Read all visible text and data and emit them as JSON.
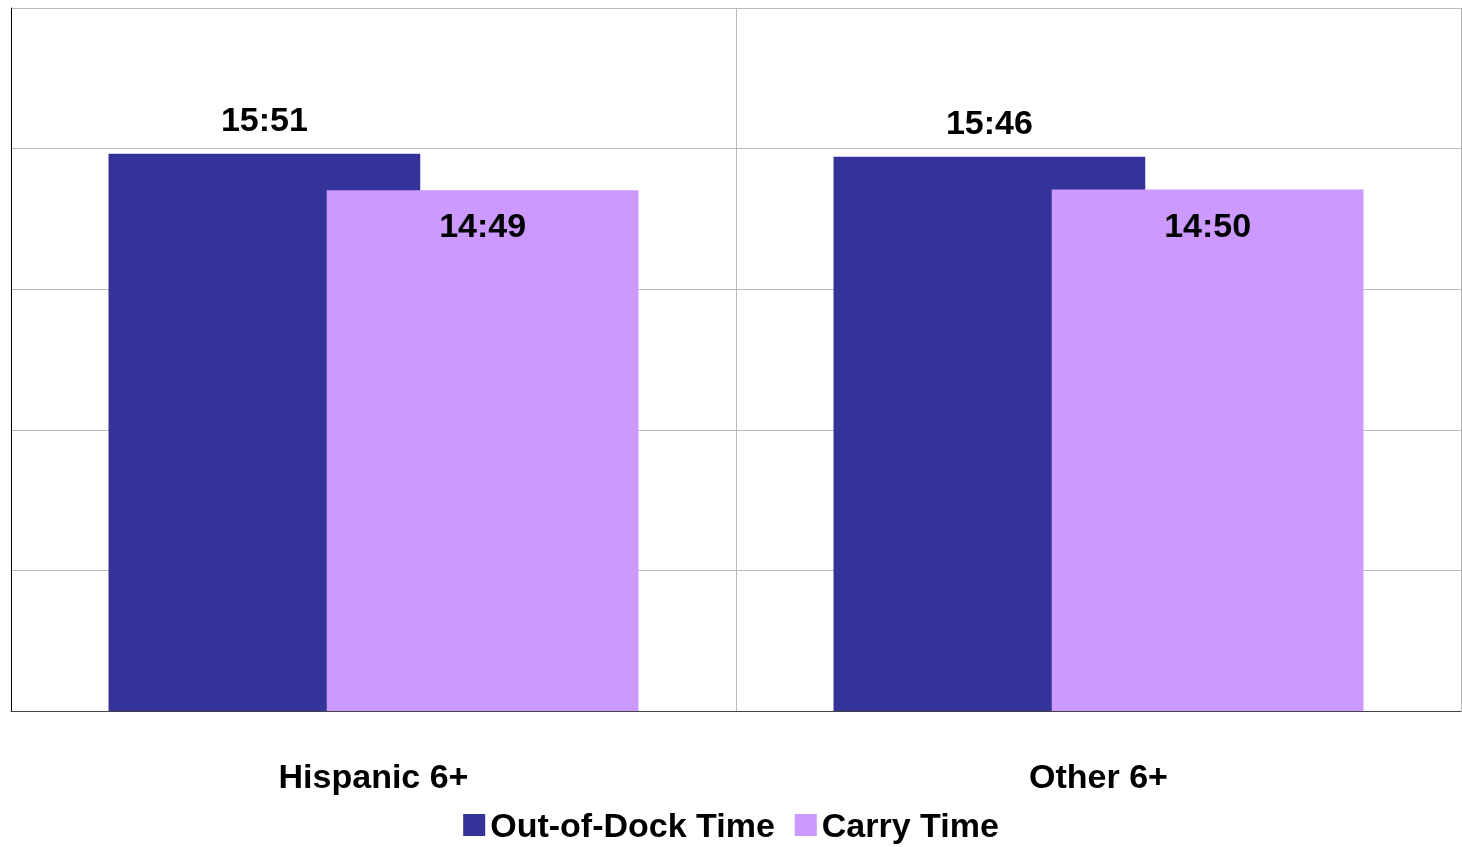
{
  "chart_data": {
    "type": "bar",
    "categories": [
      "Hispanic 6+",
      "Other 6+"
    ],
    "series": [
      {
        "name": "Out-of-Dock Time",
        "color": "#333399",
        "values": [
          15.85,
          15.7667
        ],
        "value_labels": [
          "15:51",
          "15:46"
        ]
      },
      {
        "name": "Carry Time",
        "color": "#cc99ff",
        "values": [
          14.8167,
          14.8333
        ],
        "value_labels": [
          "14:49",
          "14:50"
        ]
      }
    ],
    "ylim": [
      0,
      20
    ],
    "yticks": [
      0,
      {
        "value": 4,
        "label": null
      },
      {
        "value": 8,
        "label": null
      },
      {
        "value": 12,
        "label": null
      },
      {
        "value": 16,
        "label": null
      },
      {
        "value": 20,
        "label": null
      }
    ],
    "tick_labels": "x",
    "grid": true,
    "legend": "bottom"
  }
}
